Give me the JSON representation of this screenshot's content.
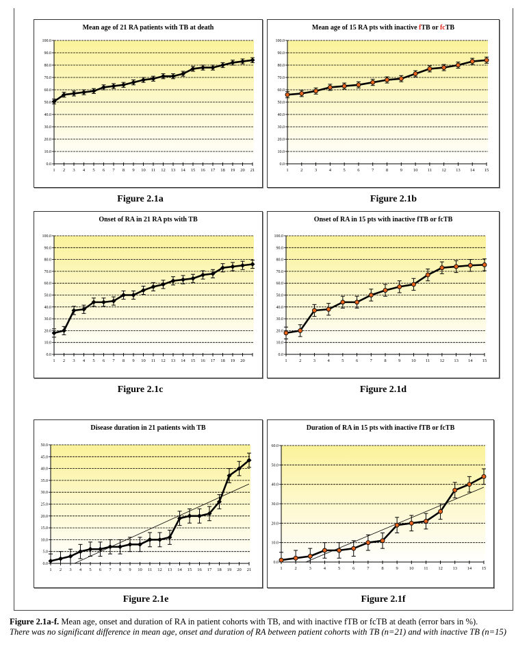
{
  "chart_data": [
    {
      "id": "a",
      "type": "line",
      "title_parts": [
        "Mean age of 21 RA patients with TB at death"
      ],
      "figure_label": "Figure 2.1a",
      "ylim": [
        0,
        100
      ],
      "ystep": 10,
      "yticks": [
        "0.0",
        "10.0",
        "20.0",
        "30.0",
        "40.0",
        "50.0",
        "60.0",
        "70.0",
        "80.0",
        "90.0",
        "100.0"
      ],
      "x": [
        1,
        2,
        3,
        4,
        5,
        6,
        7,
        8,
        9,
        10,
        11,
        12,
        13,
        14,
        15,
        16,
        17,
        18,
        19,
        20,
        21
      ],
      "xlabels": [
        "1",
        "2",
        "3",
        "4",
        "5",
        "6",
        "7",
        "8",
        "9",
        "10",
        "11",
        "12",
        "13",
        "14",
        "15",
        "16",
        "17",
        "18",
        "19",
        "20",
        "21"
      ],
      "values": [
        50.5,
        56,
        57,
        58,
        59,
        62,
        63,
        64,
        66,
        68,
        69,
        71,
        71,
        73,
        77,
        78,
        78,
        80,
        82,
        83,
        84
      ],
      "error": 2,
      "marker": "diamond",
      "grid": true
    },
    {
      "id": "b",
      "type": "line",
      "title_parts": [
        "Mean age of 15 RA pts with inactive ",
        "f",
        "TB or ",
        "fc",
        "TB"
      ],
      "figure_label": "Figure 2.1b",
      "ylim": [
        0,
        100
      ],
      "ystep": 10,
      "yticks": [
        "0.0",
        "10.0",
        "20.0",
        "30.0",
        "40.0",
        "50.0",
        "60.0",
        "70.0",
        "80.0",
        "90.0",
        "100.0"
      ],
      "x": [
        1,
        2,
        3,
        4,
        5,
        6,
        7,
        8,
        9,
        10,
        11,
        12,
        13,
        14,
        15
      ],
      "xlabels": [
        "1",
        "2",
        "3",
        "4",
        "5",
        "6",
        "7",
        "8",
        "9",
        "10",
        "11",
        "12",
        "13",
        "14",
        "15"
      ],
      "values": [
        56,
        57,
        59,
        62,
        63,
        64,
        66,
        68,
        69,
        73,
        77,
        78,
        80,
        83,
        84
      ],
      "error": 2.5,
      "marker": "circle",
      "grid": true
    },
    {
      "id": "c",
      "type": "line",
      "title_parts": [
        "Onset of  RA in 21 RA pts with TB"
      ],
      "figure_label": "Figure 2.1c",
      "ylim": [
        0,
        100
      ],
      "ystep": 10,
      "yticks": [
        "0.0",
        "10.0",
        "20.0",
        "30.0",
        "40.0",
        "50.0",
        "60.0",
        "70.0",
        "80.0",
        "90.0",
        "100.0"
      ],
      "x": [
        1,
        2,
        3,
        4,
        5,
        6,
        7,
        8,
        9,
        10,
        11,
        12,
        13,
        14,
        15,
        16,
        17,
        18,
        19,
        20,
        21
      ],
      "xlabels": [
        "1",
        "2",
        "3",
        "4",
        "5",
        "6",
        "7",
        "8",
        "9",
        "10",
        "11",
        "12",
        "13",
        "14",
        "15",
        "16",
        "17",
        "18",
        "19",
        "20",
        ""
      ],
      "values": [
        18,
        20,
        37,
        38,
        44,
        44,
        45,
        50,
        50,
        54,
        57,
        59,
        62,
        63,
        64,
        67,
        68,
        73,
        74,
        75,
        76
      ],
      "error": 3.5,
      "marker": "diamond",
      "grid": true
    },
    {
      "id": "d",
      "type": "line",
      "title_parts": [
        "Onset of  RA in 15 pts with inactive fTB or fcTB"
      ],
      "figure_label": "Figure 2.1d",
      "ylim": [
        0,
        100
      ],
      "ystep": 10,
      "yticks": [
        "0.0",
        "10.0",
        "20.0",
        "30.0",
        "40.0",
        "50.0",
        "60.0",
        "70.0",
        "80.0",
        "90.0",
        "100.0"
      ],
      "x": [
        1,
        2,
        3,
        4,
        5,
        6,
        7,
        8,
        9,
        10,
        11,
        12,
        13,
        14,
        15
      ],
      "xlabels": [
        "1",
        "2",
        "3",
        "4",
        "5",
        "6",
        "7",
        "8",
        "9",
        "10",
        "11",
        "12",
        "13",
        "14",
        "15"
      ],
      "values": [
        18,
        20,
        37,
        38,
        44,
        44,
        50,
        54,
        57,
        59,
        67,
        73,
        74,
        75,
        75.5
      ],
      "error": 5,
      "marker": "circle",
      "grid": true
    },
    {
      "id": "e",
      "type": "line",
      "title_parts": [
        "Disease duration in 21 patients with TB"
      ],
      "figure_label": "Figure 2.1e",
      "ylim": [
        0,
        50
      ],
      "ystep": 5,
      "yticks": [
        "0.0",
        "5.0",
        "10.0",
        "15.0",
        "20.0",
        "25.0",
        "30.0",
        "35.0",
        "40.0",
        "45.0",
        "50.0"
      ],
      "x": [
        1,
        2,
        3,
        4,
        5,
        6,
        7,
        8,
        9,
        10,
        11,
        12,
        13,
        14,
        15,
        16,
        17,
        18,
        19,
        20,
        21
      ],
      "xlabels": [
        "1",
        "2",
        "3",
        "4",
        "5",
        "6",
        "7",
        "8",
        "9",
        "10",
        "11",
        "12",
        "13",
        "14",
        "15",
        "16",
        "17",
        "18",
        "19",
        "20",
        "21"
      ],
      "values": [
        1,
        2,
        3,
        5,
        6,
        6,
        7,
        7,
        8,
        8,
        10,
        10,
        11,
        19,
        20,
        20,
        21,
        26,
        37,
        40,
        43.5
      ],
      "error": 3,
      "marker": "diamond",
      "grid": true,
      "trendline": [
        [
          3.4,
          0
        ],
        [
          21,
          33.5
        ]
      ]
    },
    {
      "id": "f",
      "type": "line",
      "title_parts": [
        "Duration of RA in 15 pts with inactive fTB or fcTB"
      ],
      "figure_label": "Figure 2.1f",
      "ylim": [
        0,
        60
      ],
      "ystep": 10,
      "yticks": [
        "0.0",
        "10.0",
        "20.0",
        "30.0",
        "40.0",
        "50.0",
        "60.0"
      ],
      "x": [
        1,
        2,
        3,
        4,
        5,
        6,
        7,
        8,
        9,
        10,
        11,
        12,
        13,
        14,
        15
      ],
      "xlabels": [
        "1",
        "2",
        "3",
        "4",
        "5",
        "6",
        "7",
        "8",
        "9",
        "10",
        "11",
        "12",
        "13",
        "14",
        "15"
      ],
      "values": [
        1,
        2,
        3,
        6,
        6,
        7,
        10,
        11,
        19,
        20,
        21,
        26,
        37,
        40,
        44
      ],
      "error": 4,
      "marker": "circle",
      "grid": true,
      "trendline": [
        [
          2.7,
          0
        ],
        [
          15,
          38.5
        ]
      ]
    }
  ],
  "colors": {
    "marker_orange": "#e8651e",
    "line": "#000000",
    "plot_bg_top": "#fbf29a",
    "plot_bg_bottom": "#ffffff",
    "title_red": "#e0201a"
  },
  "caption": {
    "label": "Figure 2.1a-f.",
    "text": " Mean age, onset and duration of RA in patient cohorts with TB, and with inactive fTB or fcTB at death (error bars in %).",
    "note": "There was no significant difference in mean age, onset and duration of RA between patient cohorts with TB (n=21) and with inactive TB (n=15)"
  }
}
